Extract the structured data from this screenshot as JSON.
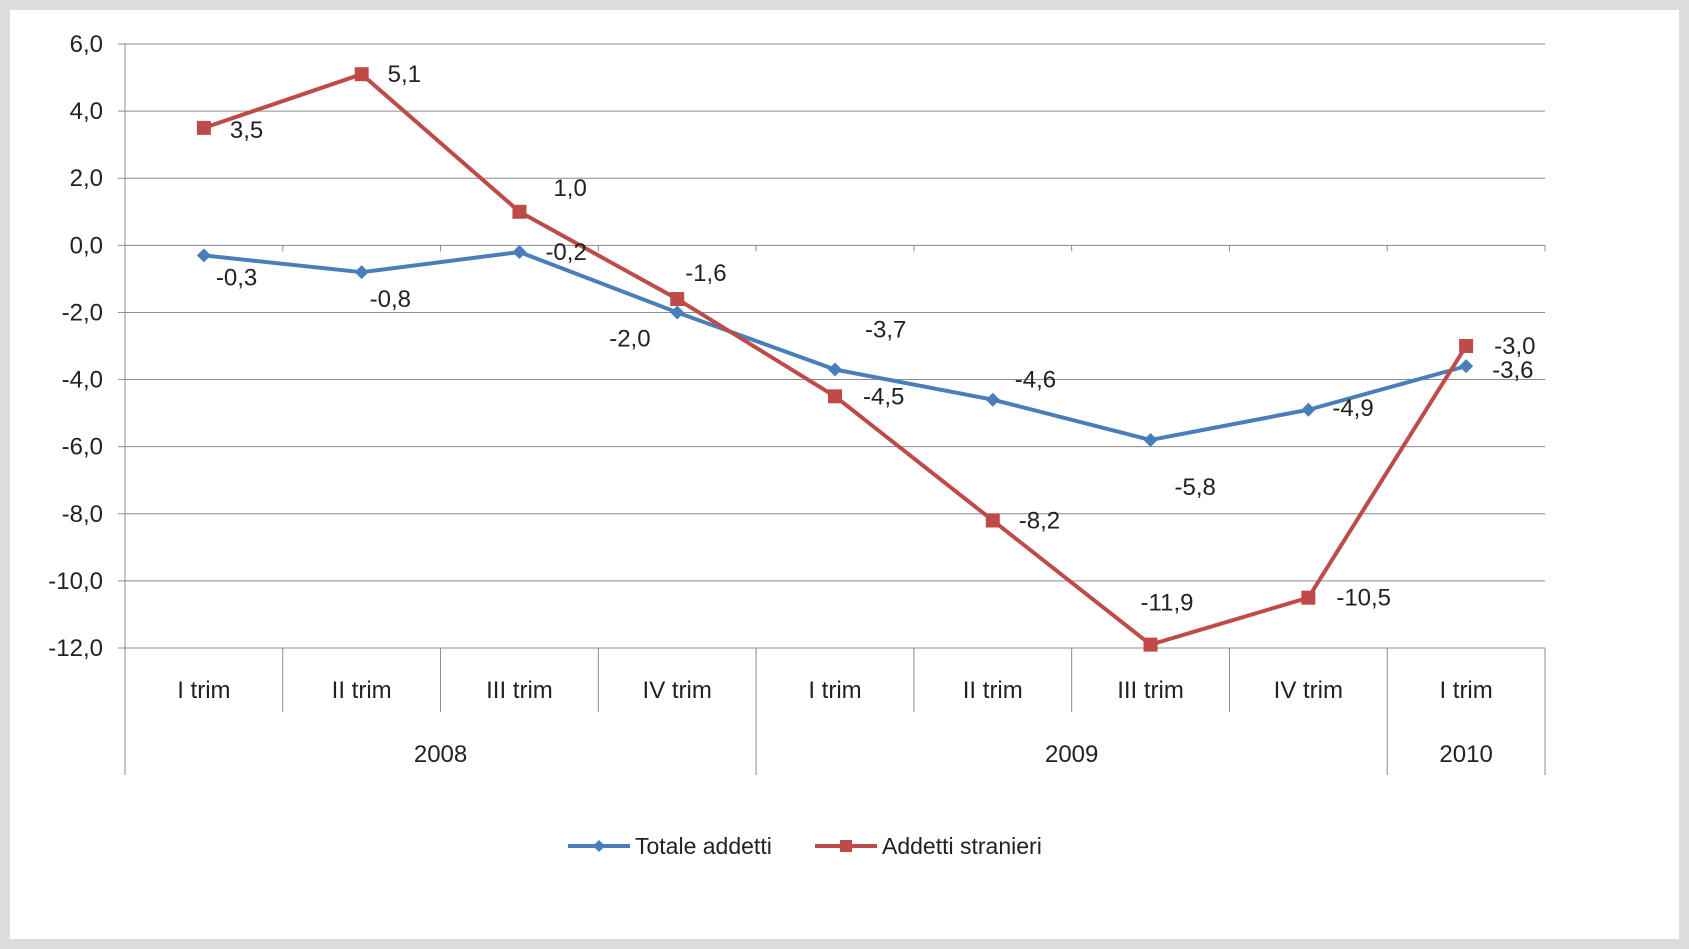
{
  "chart_data": {
    "type": "line",
    "categories": [
      "I trim",
      "II trim",
      "III trim",
      "IV trim",
      "I trim",
      "II trim",
      "III trim",
      "IV trim",
      "I trim"
    ],
    "groups": [
      {
        "label": "2008",
        "span": 4
      },
      {
        "label": "2009",
        "span": 4
      },
      {
        "label": "2010",
        "span": 1
      }
    ],
    "ylim": [
      -12,
      6
    ],
    "yticks": [
      6,
      4,
      2,
      0,
      -2,
      -4,
      -6,
      -8,
      -10,
      -12
    ],
    "ytick_labels": [
      "6,0",
      "4,0",
      "2,0",
      "0,0",
      "-2,0",
      "-4,0",
      "-6,0",
      "-8,0",
      "-10,0",
      "-12,0"
    ],
    "grid": true,
    "legend_position": "bottom",
    "series": [
      {
        "name": "Totale addetti",
        "color": "#4a7ebb",
        "marker": "diamond",
        "values": [
          -0.3,
          -0.8,
          -0.2,
          -2.0,
          -3.7,
          -4.6,
          -5.8,
          -4.9,
          -3.6
        ],
        "labels": [
          "-0,3",
          "-0,8",
          "-0,2",
          "-2,0",
          "-3,7",
          "-4,6",
          "-5,8",
          "-4,9",
          "-3,6"
        ]
      },
      {
        "name": "Addetti stranieri",
        "color": "#be4b48",
        "marker": "square",
        "values": [
          3.5,
          5.1,
          1.0,
          -1.6,
          -4.5,
          -8.2,
          -11.9,
          -10.5,
          -3.0
        ],
        "labels": [
          "3,5",
          "5,1",
          "1,0",
          "-1,6",
          "-4,5",
          "-8,2",
          "-11,9",
          "-10,5",
          "-3,0"
        ]
      }
    ]
  }
}
